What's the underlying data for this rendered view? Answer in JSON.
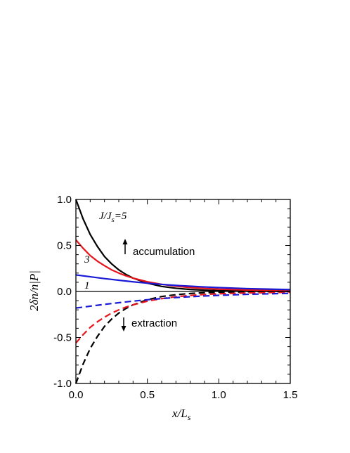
{
  "chart_data": {
    "type": "line",
    "xlabel": "x/L",
    "xlabel_sub": "s",
    "ylabel": "2δn/n|P|",
    "xlim": [
      0,
      1.5
    ],
    "ylim": [
      -1.0,
      1.0
    ],
    "x_ticks": [
      0.0,
      0.5,
      1.0,
      1.5
    ],
    "x_tick_labels": [
      "0.0",
      "0.5",
      "1.0",
      "1.5"
    ],
    "y_ticks": [
      -1.0,
      -0.5,
      0.0,
      0.5,
      1.0
    ],
    "y_tick_labels": [
      "-1.0",
      "-0.5",
      "0.0",
      "0.5",
      "1.0"
    ],
    "grid": false,
    "zero_line": true,
    "annotations": {
      "accumulation": "accumulation",
      "extraction": "extraction",
      "curve_label_5": "J/J",
      "curve_label_5_sub": "s",
      "curve_label_5_value": "=5",
      "curve_label_3": "3",
      "curve_label_1": "1"
    },
    "series": [
      {
        "color": "#000000",
        "style": "solid",
        "x": [
          0,
          0.05,
          0.1,
          0.15,
          0.2,
          0.25,
          0.3,
          0.35,
          0.4,
          0.5,
          0.6,
          0.7,
          0.8,
          0.9,
          1.0,
          1.2,
          1.5
        ],
        "y": [
          1.0,
          0.79,
          0.62,
          0.49,
          0.38,
          0.3,
          0.235,
          0.185,
          0.145,
          0.09,
          0.055,
          0.035,
          0.022,
          0.014,
          0.009,
          0.004,
          0.001
        ]
      },
      {
        "color": "#e8141c",
        "style": "solid",
        "x": [
          0,
          0.05,
          0.1,
          0.15,
          0.2,
          0.25,
          0.3,
          0.35,
          0.4,
          0.5,
          0.6,
          0.7,
          0.8,
          0.9,
          1.0,
          1.2,
          1.5
        ],
        "y": [
          0.56,
          0.47,
          0.39,
          0.33,
          0.28,
          0.235,
          0.2,
          0.17,
          0.145,
          0.105,
          0.078,
          0.057,
          0.043,
          0.033,
          0.025,
          0.016,
          0.009
        ]
      },
      {
        "color": "#1a1ad6",
        "style": "solid",
        "x": [
          0,
          0.1,
          0.2,
          0.3,
          0.4,
          0.5,
          0.6,
          0.7,
          0.8,
          0.9,
          1.0,
          1.2,
          1.5
        ],
        "y": [
          0.18,
          0.16,
          0.14,
          0.122,
          0.105,
          0.09,
          0.077,
          0.066,
          0.057,
          0.049,
          0.042,
          0.031,
          0.02
        ]
      },
      {
        "color": "#000000",
        "style": "dashed",
        "x": [
          0,
          0.05,
          0.1,
          0.15,
          0.2,
          0.25,
          0.3,
          0.35,
          0.4,
          0.5,
          0.6,
          0.7,
          0.8,
          0.9,
          1.0,
          1.2,
          1.5
        ],
        "y": [
          -1.0,
          -0.79,
          -0.62,
          -0.49,
          -0.38,
          -0.3,
          -0.235,
          -0.185,
          -0.145,
          -0.09,
          -0.055,
          -0.035,
          -0.022,
          -0.014,
          -0.009,
          -0.004,
          -0.001
        ]
      },
      {
        "color": "#e8141c",
        "style": "dashed",
        "x": [
          0,
          0.05,
          0.1,
          0.15,
          0.2,
          0.25,
          0.3,
          0.35,
          0.4,
          0.5,
          0.6,
          0.7,
          0.8,
          0.9,
          1.0,
          1.2,
          1.5
        ],
        "y": [
          -0.56,
          -0.47,
          -0.39,
          -0.33,
          -0.28,
          -0.235,
          -0.2,
          -0.17,
          -0.145,
          -0.105,
          -0.078,
          -0.057,
          -0.043,
          -0.033,
          -0.025,
          -0.016,
          -0.009
        ]
      },
      {
        "color": "#1a1ad6",
        "style": "dashed",
        "x": [
          0,
          0.1,
          0.2,
          0.3,
          0.4,
          0.5,
          0.6,
          0.7,
          0.8,
          0.9,
          1.0,
          1.2,
          1.5
        ],
        "y": [
          -0.18,
          -0.16,
          -0.14,
          -0.122,
          -0.105,
          -0.09,
          -0.077,
          -0.066,
          -0.057,
          -0.049,
          -0.042,
          -0.031,
          -0.02
        ]
      }
    ]
  }
}
